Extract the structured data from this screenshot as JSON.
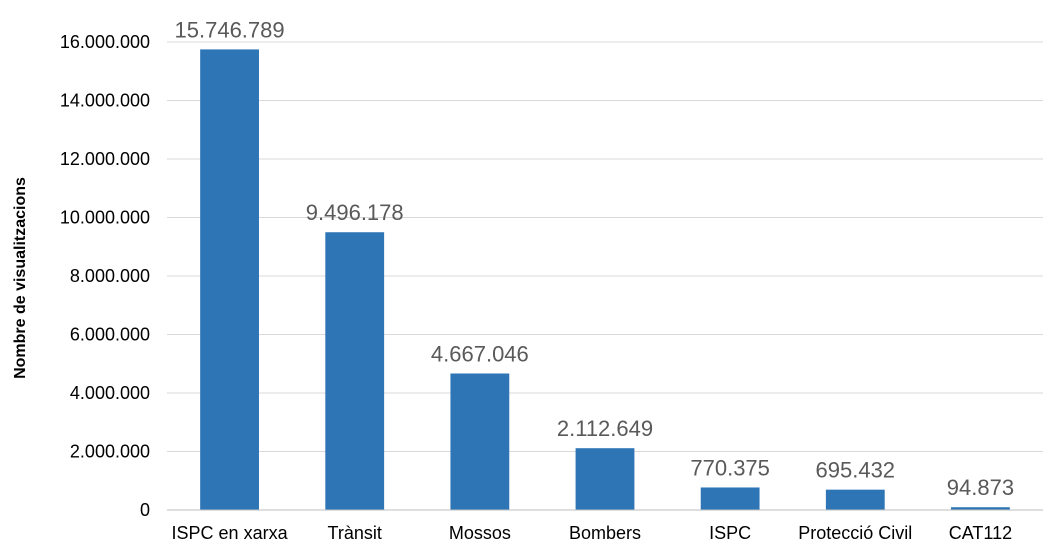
{
  "chart_data": {
    "type": "bar",
    "title": "",
    "xlabel": "",
    "ylabel": "Nombre de visualitzacions",
    "ylim": [
      0,
      16000000
    ],
    "yticks": [
      "0",
      "2.000.000",
      "4.000.000",
      "6.000.000",
      "8.000.000",
      "10.000.000",
      "12.000.000",
      "14.000.000",
      "16.000.000"
    ],
    "ytick_values": [
      0,
      2000000,
      4000000,
      6000000,
      8000000,
      10000000,
      12000000,
      14000000,
      16000000
    ],
    "grid": true,
    "legend": "none",
    "bar_color": "#2E75B6",
    "categories": [
      "ISPC en xarxa",
      "Trànsit",
      "Mossos",
      "Bombers",
      "ISPC",
      "Protecció Civil",
      "CAT112"
    ],
    "values": [
      15746789,
      9496178,
      4667046,
      2112649,
      770375,
      695432,
      94873
    ],
    "data_labels": [
      "15.746.789",
      "9.496.178",
      "4.667.046",
      "2.112.649",
      "770.375",
      "695.432",
      "94.873"
    ]
  }
}
